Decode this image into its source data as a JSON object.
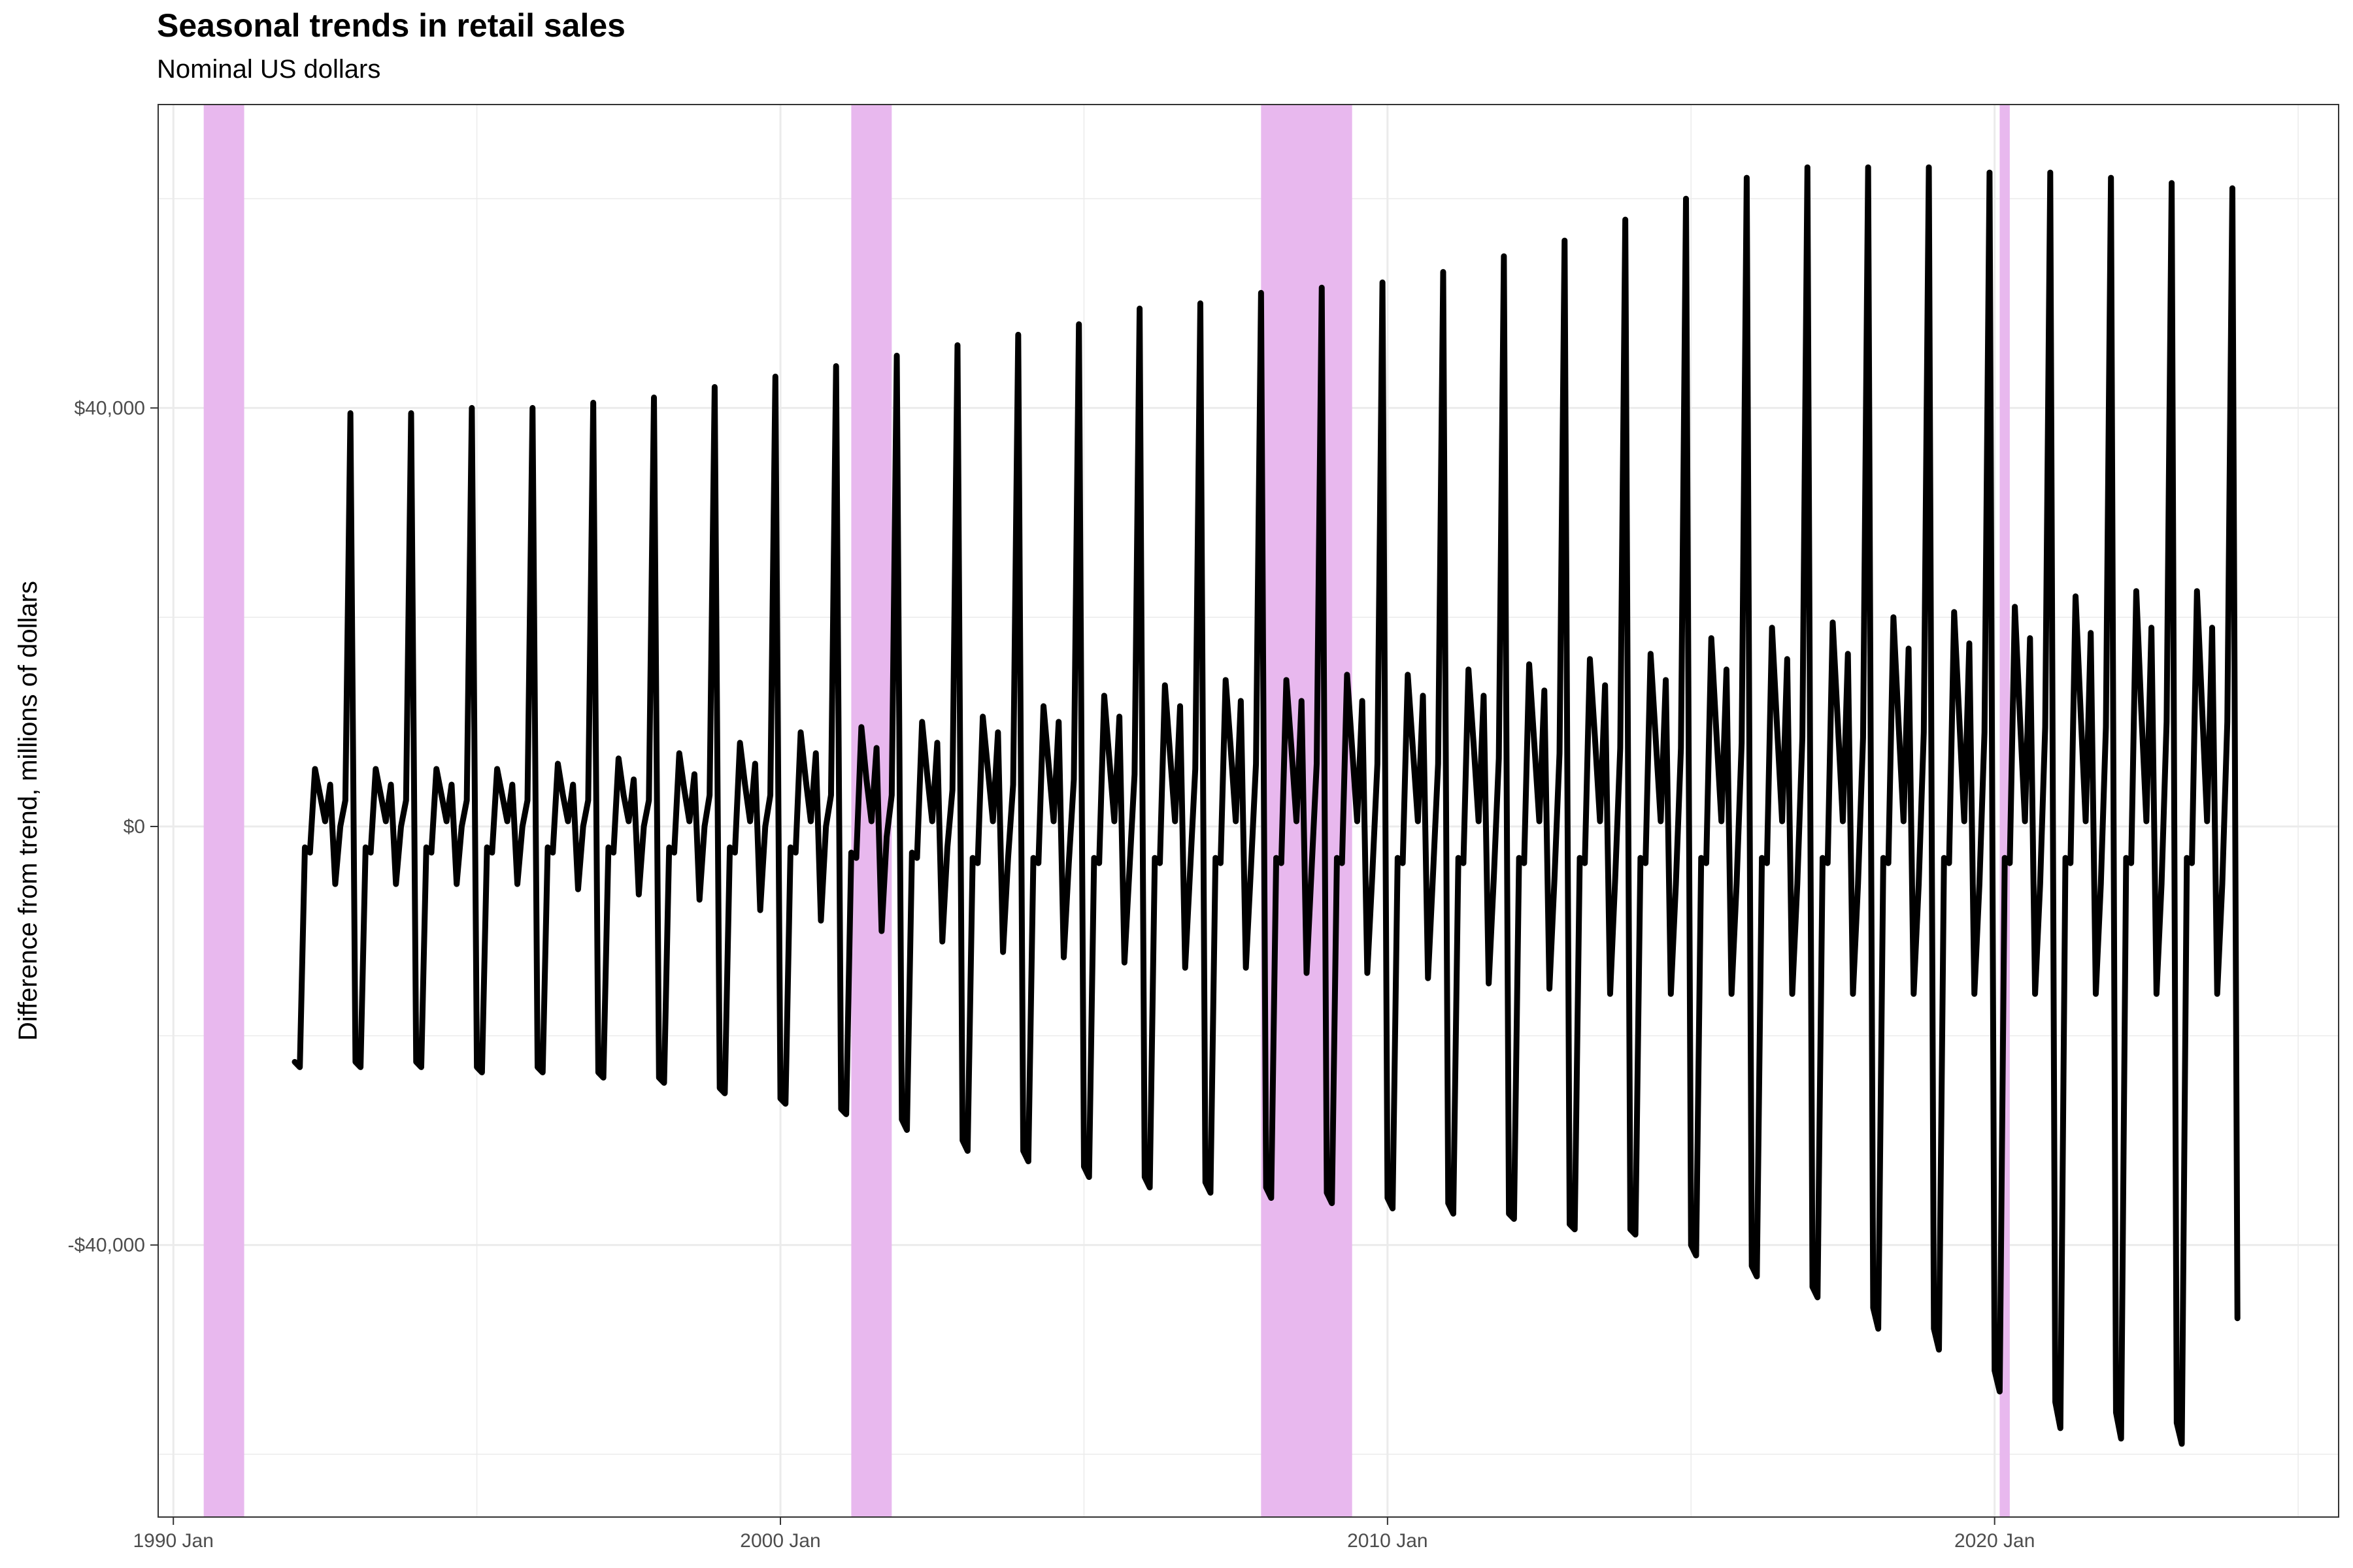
{
  "chart_data": {
    "type": "line",
    "title": "Seasonal trends in retail sales",
    "subtitle": "Nominal US dollars",
    "xlabel": "",
    "ylabel": "Difference from trend, millions of dollars",
    "x_ticks": [
      "1990 Jan",
      "2000 Jan",
      "2010 Jan",
      "2020 Jan"
    ],
    "y_ticks": [
      "-$40,000",
      "$0",
      "$40,000"
    ],
    "ylim": [
      -66000,
      69000
    ],
    "xlim": [
      "1989-10",
      "2025-09"
    ],
    "grid": true,
    "line_color": "#000000",
    "recession_color": "#E8B8EE",
    "recessions": [
      {
        "start": "1990-07",
        "end": "1991-03"
      },
      {
        "start": "2001-03",
        "end": "2001-11"
      },
      {
        "start": "2007-12",
        "end": "2009-06"
      },
      {
        "start": "2020-02",
        "end": "2020-04"
      }
    ],
    "series": [
      {
        "start": "1992-01",
        "pattern": [
          "Jan",
          "Feb",
          "Mar",
          "Apr",
          "May",
          "Jun",
          "Jul",
          "Aug",
          "Sep",
          "Oct",
          "Nov",
          "Dec"
        ],
        "years": [
          {
            "year": 1992,
            "values": [
              -22500,
              -23000,
              -2000,
              -2500,
              5500,
              3000,
              500,
              4000,
              -5500,
              0,
              2500,
              39500
            ]
          },
          {
            "year": 1993,
            "values": [
              -22500,
              -23000,
              -2000,
              -2500,
              5500,
              3000,
              500,
              4000,
              -5500,
              0,
              2500,
              39500
            ]
          },
          {
            "year": 1994,
            "values": [
              -22500,
              -23000,
              -2000,
              -2500,
              5500,
              3000,
              500,
              4000,
              -5500,
              0,
              2500,
              40000
            ]
          },
          {
            "year": 1995,
            "values": [
              -23000,
              -23500,
              -2000,
              -2500,
              5500,
              3000,
              500,
              4000,
              -5500,
              0,
              2500,
              40000
            ]
          },
          {
            "year": 1996,
            "values": [
              -23000,
              -23500,
              -2000,
              -2500,
              6000,
              3000,
              500,
              4000,
              -6000,
              0,
              2500,
              40500
            ]
          },
          {
            "year": 1997,
            "values": [
              -23500,
              -24000,
              -2000,
              -2500,
              6500,
              3000,
              500,
              4500,
              -6500,
              0,
              2500,
              41000
            ]
          },
          {
            "year": 1998,
            "values": [
              -24000,
              -24500,
              -2000,
              -2500,
              7000,
              3500,
              500,
              5000,
              -7000,
              0,
              3000,
              42000
            ]
          },
          {
            "year": 1999,
            "values": [
              -25000,
              -25500,
              -2000,
              -2500,
              8000,
              4000,
              500,
              6000,
              -8000,
              0,
              3000,
              43000
            ]
          },
          {
            "year": 2000,
            "values": [
              -26000,
              -26500,
              -2000,
              -2500,
              9000,
              4500,
              500,
              7000,
              -9000,
              0,
              3000,
              44000
            ]
          },
          {
            "year": 2001,
            "values": [
              -27000,
              -27500,
              -2500,
              -3000,
              9500,
              4500,
              500,
              7500,
              -10000,
              -1000,
              3000,
              45000
            ]
          },
          {
            "year": 2002,
            "values": [
              -28000,
              -29000,
              -2500,
              -3000,
              10000,
              5000,
              500,
              8000,
              -11000,
              -2000,
              3500,
              46000
            ]
          },
          {
            "year": 2003,
            "values": [
              -30000,
              -31000,
              -3000,
              -3500,
              10500,
              5500,
              500,
              9000,
              -12000,
              -3000,
              4000,
              47000
            ]
          },
          {
            "year": 2004,
            "values": [
              -31000,
              -32000,
              -3000,
              -3500,
              11500,
              6000,
              500,
              10000,
              -12500,
              -3500,
              4500,
              48000
            ]
          },
          {
            "year": 2005,
            "values": [
              -32500,
              -33500,
              -3000,
              -3500,
              12500,
              6500,
              500,
              10500,
              -13000,
              -4000,
              5000,
              49500
            ]
          },
          {
            "year": 2006,
            "values": [
              -33500,
              -34500,
              -3000,
              -3500,
              13500,
              7000,
              500,
              11500,
              -13500,
              -4000,
              5500,
              50000
            ]
          },
          {
            "year": 2007,
            "values": [
              -34000,
              -35000,
              -3000,
              -3500,
              14000,
              7500,
              500,
              12000,
              -13500,
              -4000,
              6000,
              51000
            ]
          },
          {
            "year": 2008,
            "values": [
              -34500,
              -35500,
              -3000,
              -3500,
              14000,
              7500,
              500,
              12000,
              -14000,
              -4000,
              6000,
              51500
            ]
          },
          {
            "year": 2009,
            "values": [
              -35000,
              -36000,
              -3000,
              -3500,
              14500,
              7500,
              500,
              12000,
              -14000,
              -4500,
              6000,
              52000
            ]
          },
          {
            "year": 2010,
            "values": [
              -35500,
              -36500,
              -3000,
              -3500,
              14500,
              7500,
              500,
              12500,
              -14500,
              -4500,
              6000,
              53000
            ]
          },
          {
            "year": 2011,
            "values": [
              -36000,
              -37000,
              -3000,
              -3500,
              15000,
              8000,
              500,
              12500,
              -15000,
              -5000,
              6500,
              54500
            ]
          },
          {
            "year": 2012,
            "values": [
              -37000,
              -37500,
              -3000,
              -3500,
              15500,
              8000,
              500,
              13000,
              -15500,
              -5000,
              7000,
              56000
            ]
          },
          {
            "year": 2013,
            "values": [
              -38000,
              -38500,
              -3000,
              -3500,
              16000,
              8500,
              500,
              13500,
              -16000,
              -5000,
              7500,
              58000
            ]
          },
          {
            "year": 2014,
            "values": [
              -38500,
              -39000,
              -3000,
              -3500,
              16500,
              8500,
              500,
              14000,
              -16000,
              -5500,
              7500,
              60000
            ]
          },
          {
            "year": 2015,
            "values": [
              -40000,
              -41000,
              -3000,
              -3500,
              18000,
              9000,
              500,
              15000,
              -16000,
              -5500,
              8000,
              62000
            ]
          },
          {
            "year": 2016,
            "values": [
              -42000,
              -43000,
              -3000,
              -3500,
              19000,
              9500,
              500,
              16000,
              -16000,
              -5500,
              8500,
              63000
            ]
          },
          {
            "year": 2017,
            "values": [
              -44000,
              -45000,
              -3000,
              -3500,
              19500,
              10000,
              500,
              16500,
              -16000,
              -5500,
              8500,
              63000
            ]
          },
          {
            "year": 2018,
            "values": [
              -46000,
              -48000,
              -3000,
              -3500,
              20000,
              10000,
              500,
              17000,
              -16000,
              -5500,
              9000,
              63000
            ]
          },
          {
            "year": 2019,
            "values": [
              -48000,
              -50000,
              -3000,
              -3500,
              20500,
              10500,
              500,
              17500,
              -16000,
              -5500,
              9000,
              62500
            ]
          },
          {
            "year": 2020,
            "values": [
              -52000,
              -54000,
              -3000,
              -3500,
              21000,
              10500,
              500,
              18000,
              -16000,
              -5500,
              9500,
              62500
            ]
          },
          {
            "year": 2021,
            "values": [
              -55000,
              -57500,
              -3000,
              -3500,
              22000,
              11000,
              500,
              18500,
              -16000,
              -5500,
              9500,
              62000
            ]
          },
          {
            "year": 2022,
            "values": [
              -56000,
              -58500,
              -3000,
              -3500,
              22500,
              11000,
              500,
              19000,
              -16000,
              -5500,
              10000,
              61500
            ]
          },
          {
            "year": 2023,
            "values": [
              -57000,
              -59000,
              -3000,
              -3500,
              22500,
              11500,
              500,
              19000,
              -16000,
              -5500,
              10000,
              61000
            ]
          },
          {
            "year": 2024,
            "values": [
              -47000
            ]
          }
        ]
      }
    ]
  }
}
